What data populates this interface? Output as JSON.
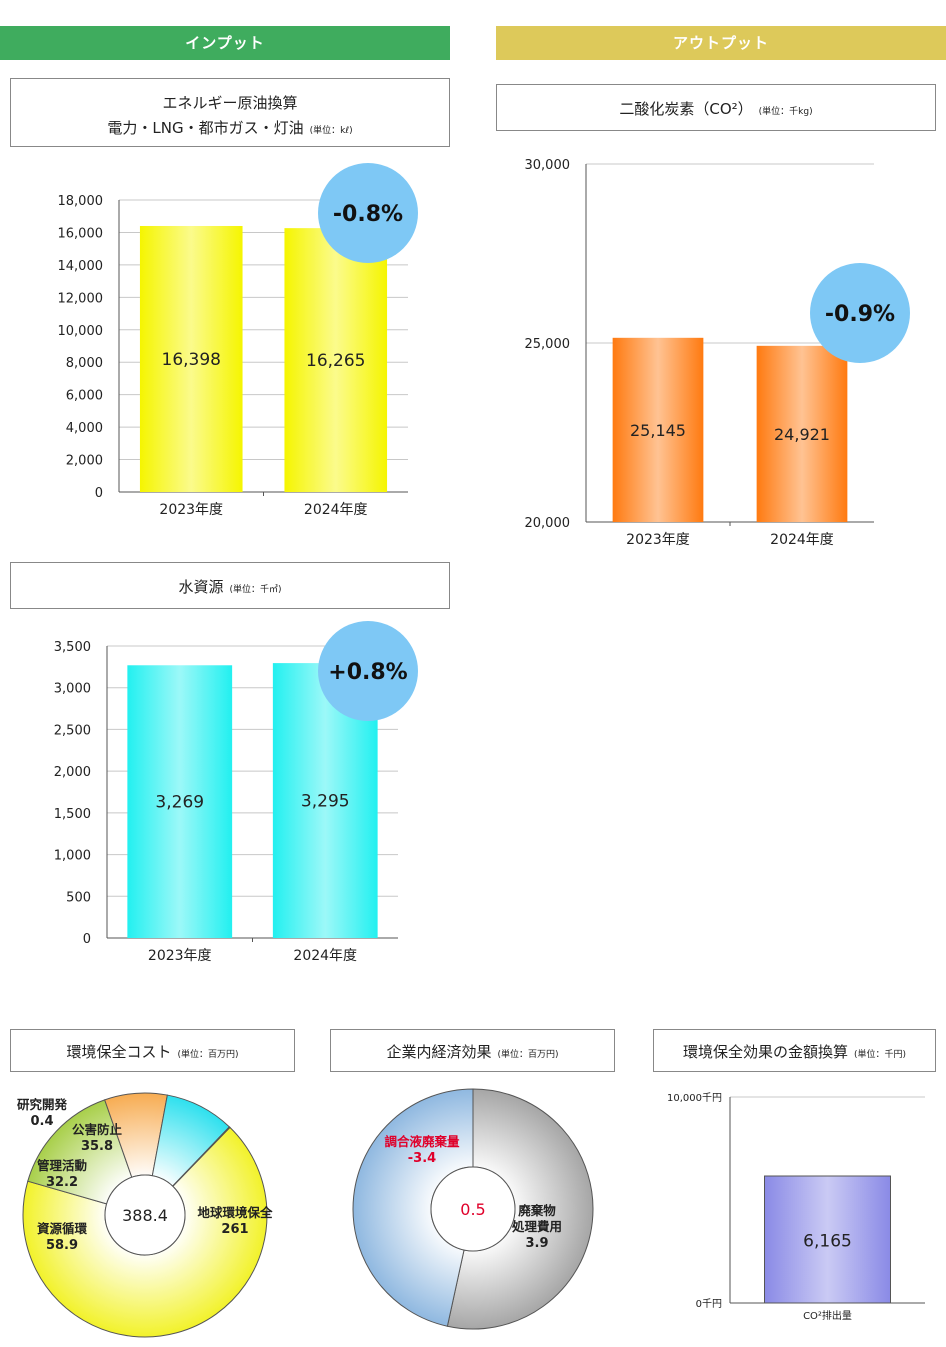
{
  "headers": {
    "input": "インプット",
    "output": "アウトプット"
  },
  "colors": {
    "input_header": "#3fac5e",
    "output_header": "#ddc95a",
    "badge": "#7ec8f5"
  },
  "energy": {
    "title_line1": "エネルギー原油換算",
    "title_line2": "電力・LNG・都市ガス・灯油",
    "unit": "(単位：kℓ)",
    "badge": "-0.8%"
  },
  "co2": {
    "title": "二酸化炭素（CO²）",
    "unit": "(単位：千kg)",
    "badge": "-0.9%"
  },
  "water": {
    "title": "水資源",
    "unit": "(単位：千㎥)",
    "badge": "+0.8%"
  },
  "env_cost": {
    "title": "環境保全コスト",
    "unit": "(単位：百万円)"
  },
  "econ": {
    "title": "企業内経済効果",
    "unit": "(単位：百万円)"
  },
  "monetary": {
    "title": "環境保全効果の金額換算",
    "unit": "(単位：千円)"
  },
  "chart_data": [
    {
      "id": "energy",
      "type": "bar",
      "title": "エネルギー原油換算 電力・LNG・都市ガス・灯油",
      "categories": [
        "2023年度",
        "2024年度"
      ],
      "values": [
        16398,
        16265
      ],
      "value_labels": [
        "16,398",
        "16,265"
      ],
      "ylim": [
        0,
        18000
      ],
      "yticks": [
        "0",
        "2,000",
        "4,000",
        "6,000",
        "8,000",
        "10,000",
        "12,000",
        "14,000",
        "16,000",
        "18,000"
      ],
      "color": "#f5f500"
    },
    {
      "id": "co2",
      "type": "bar",
      "title": "二酸化炭素（CO²）",
      "categories": [
        "2023年度",
        "2024年度"
      ],
      "values": [
        25145,
        24921
      ],
      "value_labels": [
        "25,145",
        "24,921"
      ],
      "ylim": [
        20000,
        30000
      ],
      "yticks": [
        "20,000",
        "25,000",
        "30,000"
      ],
      "color": "#ff7a10"
    },
    {
      "id": "water",
      "type": "bar",
      "title": "水資源",
      "categories": [
        "2023年度",
        "2024年度"
      ],
      "values": [
        3269,
        3295
      ],
      "value_labels": [
        "3,269",
        "3,295"
      ],
      "ylim": [
        0,
        3500
      ],
      "yticks": [
        "0",
        "500",
        "1,000",
        "1,500",
        "2,000",
        "2,500",
        "3,000",
        "3,500"
      ],
      "color": "#22f0f0"
    },
    {
      "id": "env_cost",
      "type": "pie",
      "title": "環境保全コスト",
      "center_label": "388.4",
      "slices": [
        {
          "name": "地球環境保全",
          "value": 261,
          "label": "261",
          "color": "#f2f22a"
        },
        {
          "name": "資源循環",
          "value": 58.9,
          "label": "58.9",
          "color": "#a8cf4a"
        },
        {
          "name": "管理活動",
          "value": 32.2,
          "label": "32.2",
          "color": "#f7ac52"
        },
        {
          "name": "公害防止",
          "value": 35.8,
          "label": "35.8",
          "color": "#2ee0ee"
        },
        {
          "name": "研究開発",
          "value": 0.4,
          "label": "0.4",
          "color": "#ffffff"
        }
      ]
    },
    {
      "id": "econ",
      "type": "pie",
      "title": "企業内経済効果",
      "center_label": "0.5",
      "slices": [
        {
          "name": "廃棄物処理費用",
          "name_lines": [
            "廃棄物",
            "処理費用"
          ],
          "value": 3.9,
          "label": "3.9",
          "color": "#a6a6a6"
        },
        {
          "name": "調合液廃棄量",
          "value": -3.4,
          "label": "-3.4",
          "color": "#8fb8e0"
        }
      ]
    },
    {
      "id": "monetary",
      "type": "bar",
      "title": "環境保全効果の金額換算",
      "categories": [
        "CO²排出量"
      ],
      "values": [
        6165
      ],
      "value_labels": [
        "6,165"
      ],
      "ylim": [
        0,
        10000
      ],
      "yticks": [
        "0千円",
        "10,000千円"
      ],
      "color": "#8a8ae6"
    }
  ]
}
